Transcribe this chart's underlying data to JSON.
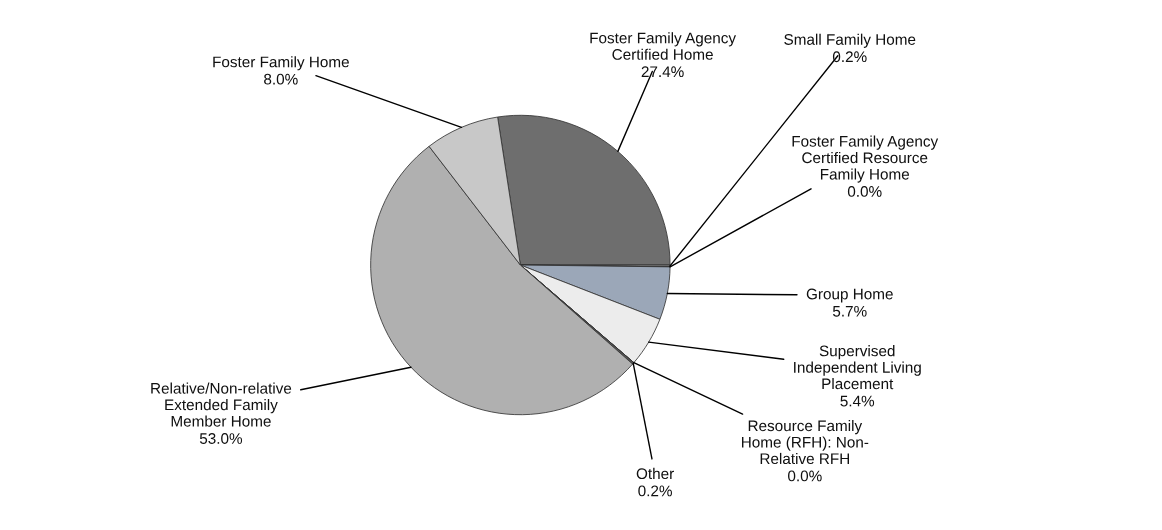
{
  "chart_data": {
    "type": "pie",
    "categories": [
      "Foster Family Agency\nCertified Home",
      "Small Family Home",
      "Foster Family Agency\nCertified Resource\nFamily Home",
      "Group Home",
      "Supervised\nIndependent Living\nPlacement",
      "Resource Family\nHome (RFH): Non-\nRelative RFH",
      "Other",
      "Relative/Non-relative\nExtended Family\nMember Home",
      "Foster Family Home"
    ],
    "values": [
      27.4,
      0.2,
      0.0,
      5.7,
      5.4,
      0.0,
      0.2,
      53.0,
      8.0
    ],
    "colors": [
      "#6e6e6e",
      "#8a8a8a",
      "#888888",
      "#9ba7b8",
      "#ececec",
      "#666666",
      "#555555",
      "#b0b0b0",
      "#c8c8c8"
    ],
    "value_labels": [
      "27.4%",
      "0.2%",
      "0.0%",
      "5.7%",
      "5.4%",
      "0.0%",
      "0.2%",
      "53.0%",
      "8.0%"
    ]
  }
}
